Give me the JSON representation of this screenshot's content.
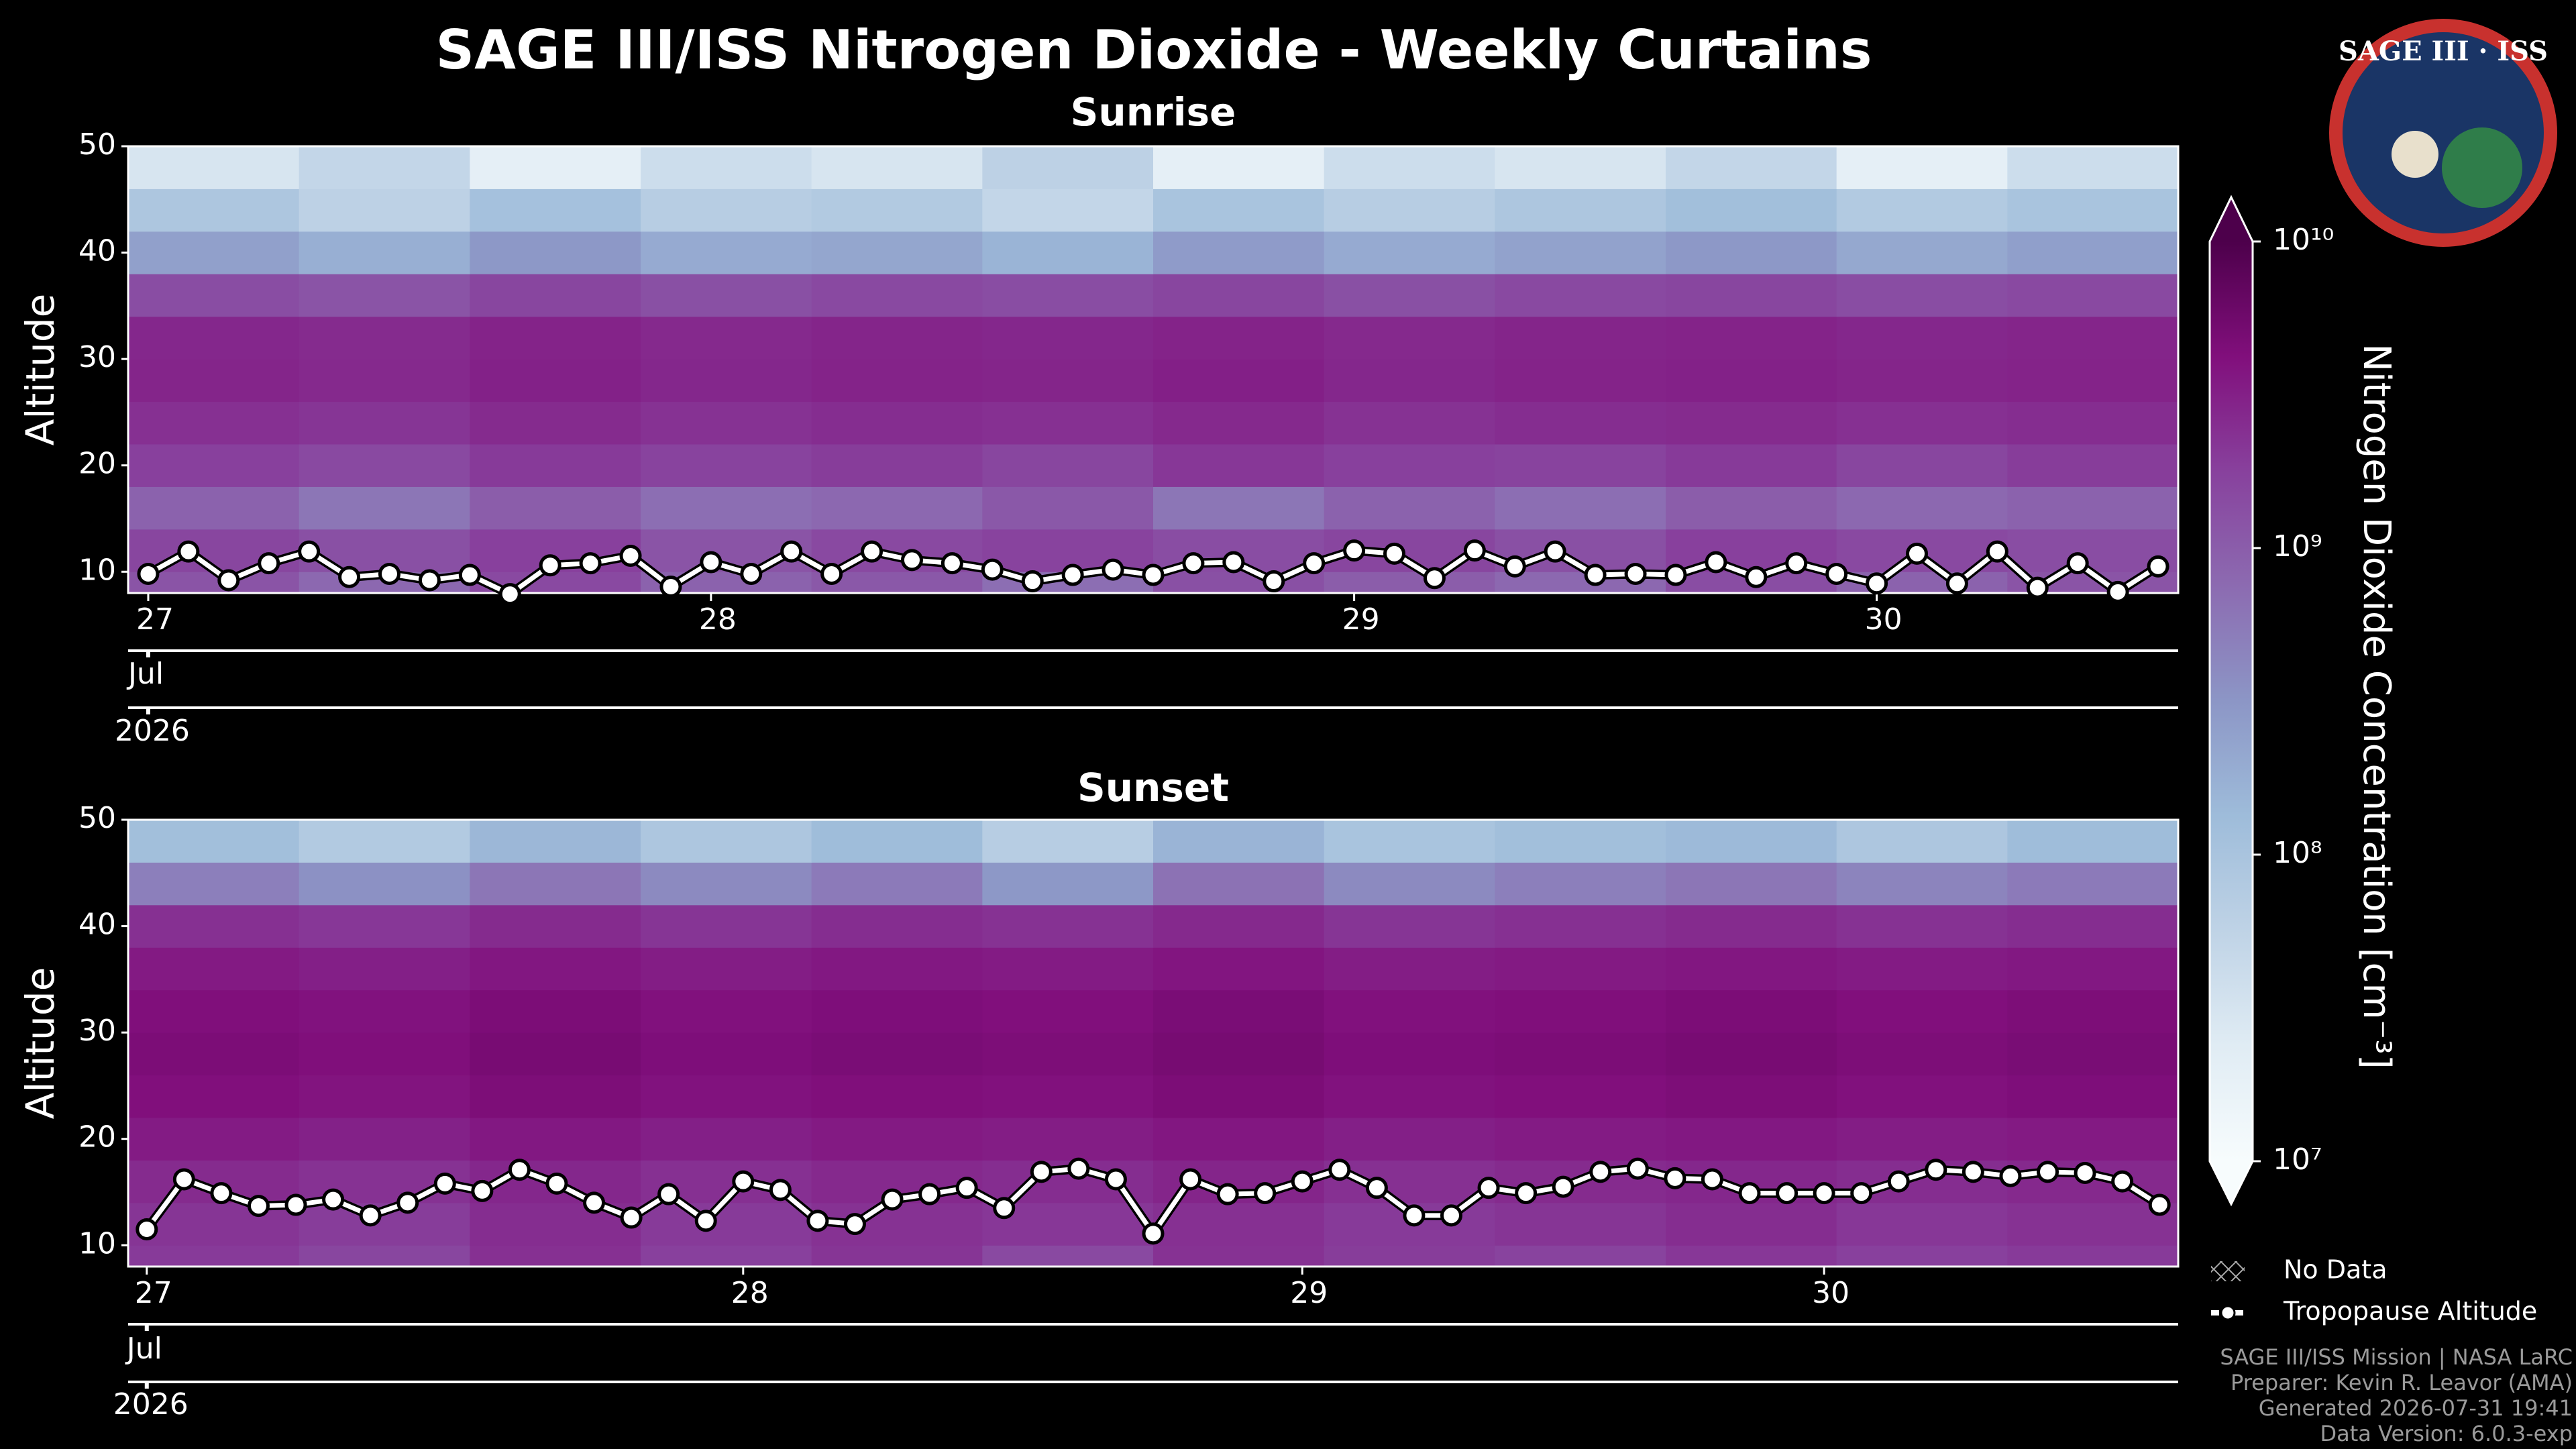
{
  "title": "SAGE III/ISS Nitrogen Dioxide - Weekly Curtains",
  "logo": {
    "title": "SAGE III · ISS"
  },
  "chart_data": [
    {
      "type": "heatmap",
      "title": "Sunrise",
      "ylabel": "Altitude",
      "ylim": [
        8,
        50
      ],
      "yticks": [
        10,
        20,
        30,
        40,
        50
      ],
      "categories": [
        "27",
        null,
        null,
        null,
        null,
        null,
        null,
        null,
        null,
        null,
        null,
        null,
        null,
        null,
        "28",
        null,
        null,
        null,
        null,
        null,
        null,
        null,
        null,
        null,
        null,
        null,
        null,
        null,
        null,
        null,
        "29",
        null,
        null,
        null,
        null,
        null,
        null,
        null,
        null,
        null,
        null,
        null,
        null,
        "30",
        null,
        null,
        null,
        null,
        null,
        null,
        null
      ],
      "month_label": "Jul",
      "year_label": "2026",
      "altitude_edges": [
        8,
        10,
        14,
        18,
        22,
        26,
        30,
        34,
        38,
        42,
        46,
        50
      ],
      "z": [
        [
          1200000000.0,
          800000000.0,
          1500000000.0,
          900000000.0,
          1100000000.0,
          700000000.0,
          1300000000.0,
          1000000000.0,
          800000000.0,
          1400000000.0,
          900000000.0,
          1200000000.0
        ],
        [
          1600000000.0,
          1300000000.0,
          1800000000.0,
          1200000000.0,
          1500000000.0,
          1700000000.0,
          1400000000.0,
          1600000000.0,
          1300000000.0,
          1800000000.0,
          1500000000.0,
          1400000000.0
        ],
        [
          900000000.0,
          600000000.0,
          1000000000.0,
          700000000.0,
          800000000.0,
          1100000000.0,
          600000000.0,
          900000000.0,
          700000000.0,
          1000000000.0,
          800000000.0,
          900000000.0
        ],
        [
          1800000000.0,
          1500000000.0,
          2000000000.0,
          1700000000.0,
          1900000000.0,
          1600000000.0,
          2100000000.0,
          1800000000.0,
          1700000000.0,
          2000000000.0,
          1600000000.0,
          1900000000.0
        ],
        [
          2400000000.0,
          2200000000.0,
          2600000000.0,
          2300000000.0,
          2500000000.0,
          2400000000.0,
          2700000000.0,
          2300000000.0,
          2500000000.0,
          2600000000.0,
          2400000000.0,
          2500000000.0
        ],
        [
          2900000000.0,
          2700000000.0,
          3100000000.0,
          2800000000.0,
          3000000000.0,
          2900000000.0,
          3200000000.0,
          2800000000.0,
          3000000000.0,
          3100000000.0,
          2900000000.0,
          3000000000.0
        ],
        [
          2800000000.0,
          2600000000.0,
          3000000000.0,
          2700000000.0,
          2900000000.0,
          2800000000.0,
          3000000000.0,
          2700000000.0,
          2900000000.0,
          3000000000.0,
          2800000000.0,
          2900000000.0
        ],
        [
          1400000000.0,
          1200000000.0,
          1600000000.0,
          1300000000.0,
          1500000000.0,
          1400000000.0,
          1600000000.0,
          1300000000.0,
          1500000000.0,
          1600000000.0,
          1400000000.0,
          1500000000.0
        ],
        [
          250000000.0,
          180000000.0,
          300000000.0,
          200000000.0,
          220000000.0,
          160000000.0,
          280000000.0,
          200000000.0,
          240000000.0,
          300000000.0,
          210000000.0,
          260000000.0
        ],
        [
          90000000.0,
          60000000.0,
          110000000.0,
          70000000.0,
          80000000.0,
          50000000.0,
          100000000.0,
          70000000.0,
          90000000.0,
          120000000.0,
          80000000.0,
          100000000.0
        ],
        [
          30000000.0,
          50000000.0,
          20000000.0,
          40000000.0,
          30000000.0,
          60000000.0,
          20000000.0,
          40000000.0,
          30000000.0,
          50000000.0,
          20000000.0,
          40000000.0
        ]
      ],
      "no_data_label": "No Data",
      "series": [
        {
          "name": "Tropopause Altitude",
          "color": "#ffffff",
          "values": [
            9.8,
            11.9,
            9.2,
            10.8,
            11.9,
            9.5,
            9.8,
            9.2,
            9.7,
            7.9,
            10.6,
            10.8,
            11.5,
            8.6,
            10.9,
            9.8,
            11.9,
            9.8,
            11.9,
            11.1,
            10.8,
            10.2,
            9.1,
            9.7,
            10.2,
            9.7,
            10.8,
            10.9,
            9.1,
            10.8,
            12.0,
            11.7,
            9.4,
            12.0,
            10.5,
            11.9,
            9.7,
            9.8,
            9.7,
            10.9,
            9.5,
            10.8,
            9.8,
            8.9,
            11.7,
            8.9,
            11.9,
            8.5,
            10.8,
            8.1,
            10.5
          ]
        }
      ]
    },
    {
      "type": "heatmap",
      "title": "Sunset",
      "ylabel": "Altitude",
      "ylim": [
        8,
        50
      ],
      "yticks": [
        10,
        20,
        30,
        40,
        50
      ],
      "categories": [
        "27",
        null,
        null,
        null,
        null,
        null,
        null,
        null,
        null,
        null,
        null,
        null,
        null,
        null,
        null,
        null,
        "28",
        null,
        null,
        null,
        null,
        null,
        null,
        null,
        null,
        null,
        null,
        null,
        null,
        null,
        null,
        "29",
        null,
        null,
        null,
        null,
        null,
        null,
        null,
        null,
        null,
        null,
        null,
        null,
        null,
        "30",
        null,
        null,
        null,
        null,
        null,
        null,
        null,
        null,
        null
      ],
      "month_label": "Jul",
      "year_label": "2026",
      "altitude_edges": [
        8,
        10,
        14,
        18,
        22,
        26,
        30,
        34,
        38,
        42,
        46,
        50
      ],
      "z": [
        [
          2000000000.0,
          1600000000.0,
          2400000000.0,
          1800000000.0,
          2200000000.0,
          1500000000.0,
          2300000000.0,
          1900000000.0,
          1700000000.0,
          2100000000.0,
          1800000000.0,
          2000000000.0
        ],
        [
          2200000000.0,
          1900000000.0,
          2500000000.0,
          2000000000.0,
          2300000000.0,
          2100000000.0,
          2400000000.0,
          2000000000.0,
          2200000000.0,
          2500000000.0,
          2100000000.0,
          2300000000.0
        ],
        [
          2600000000.0,
          2300000000.0,
          2800000000.0,
          2400000000.0,
          2700000000.0,
          2500000000.0,
          2900000000.0,
          2400000000.0,
          2600000000.0,
          2800000000.0,
          2500000000.0,
          2700000000.0
        ],
        [
          3400000000.0,
          3100000000.0,
          3600000000.0,
          3200000000.0,
          3500000000.0,
          3300000000.0,
          3700000000.0,
          3200000000.0,
          3400000000.0,
          3600000000.0,
          3300000000.0,
          3500000000.0
        ],
        [
          4200000000.0,
          3900000000.0,
          4500000000.0,
          4000000000.0,
          4300000000.0,
          4100000000.0,
          4600000000.0,
          4000000000.0,
          4200000000.0,
          4500000000.0,
          4100000000.0,
          4400000000.0
        ],
        [
          4600000000.0,
          4300000000.0,
          4900000000.0,
          4400000000.0,
          4700000000.0,
          4500000000.0,
          5000000000.0,
          4400000000.0,
          4600000000.0,
          4900000000.0,
          4500000000.0,
          4800000000.0
        ],
        [
          4300000000.0,
          4000000000.0,
          4600000000.0,
          4100000000.0,
          4400000000.0,
          4200000000.0,
          4700000000.0,
          4100000000.0,
          4300000000.0,
          4600000000.0,
          4200000000.0,
          4500000000.0
        ],
        [
          3500000000.0,
          3200000000.0,
          3700000000.0,
          3300000000.0,
          3600000000.0,
          3400000000.0,
          3800000000.0,
          3300000000.0,
          3500000000.0,
          3700000000.0,
          3400000000.0,
          3600000000.0
        ],
        [
          2400000000.0,
          2100000000.0,
          2600000000.0,
          2200000000.0,
          2500000000.0,
          2300000000.0,
          2700000000.0,
          2200000000.0,
          2400000000.0,
          2600000000.0,
          2300000000.0,
          2500000000.0
        ],
        [
          500000000.0,
          350000000.0,
          600000000.0,
          400000000.0,
          550000000.0,
          300000000.0,
          650000000.0,
          400000000.0,
          500000000.0,
          600000000.0,
          450000000.0,
          550000000.0
        ],
        [
          120000000.0,
          80000000.0,
          150000000.0,
          90000000.0,
          130000000.0,
          70000000.0,
          160000000.0,
          100000000.0,
          120000000.0,
          140000000.0,
          90000000.0,
          130000000.0
        ]
      ],
      "no_data_label": "No Data",
      "series": [
        {
          "name": "Tropopause Altitude",
          "color": "#ffffff",
          "values": [
            11.5,
            16.2,
            14.9,
            13.7,
            13.8,
            14.3,
            12.8,
            14.0,
            15.8,
            15.1,
            17.1,
            15.8,
            14.0,
            12.6,
            14.8,
            12.3,
            16.0,
            15.2,
            12.3,
            12.0,
            14.3,
            14.8,
            15.4,
            13.5,
            16.9,
            17.2,
            16.2,
            11.1,
            16.2,
            14.8,
            14.9,
            16.0,
            17.1,
            15.4,
            12.8,
            12.8,
            15.4,
            14.9,
            15.5,
            16.9,
            17.2,
            16.3,
            16.2,
            14.9,
            14.9,
            14.9,
            14.9,
            16.0,
            17.1,
            16.9,
            16.5,
            16.9,
            16.8,
            16.0,
            13.8
          ]
        }
      ]
    }
  ],
  "colorbar": {
    "label": "Nitrogen Dioxide Concentration [cm⁻³]",
    "log": true,
    "zlim": [
      10000000,
      10000000000
    ],
    "ticks": [
      {
        "value": 10000000,
        "label": "10⁷"
      },
      {
        "value": 100000000,
        "label": "10⁸"
      },
      {
        "value": 1000000000,
        "label": "10⁹"
      },
      {
        "value": 10000000000,
        "label": "10¹⁰"
      }
    ],
    "colors": [
      "#f7fcfd",
      "#e0ecf4",
      "#bfd3e6",
      "#9ebcda",
      "#8c96c6",
      "#8c6bb1",
      "#88419d",
      "#810f7c",
      "#4d004b"
    ]
  },
  "footer": [
    "SAGE III/ISS Mission | NASA LaRC",
    "Preparer: Kevin R. Leavor (AMA)",
    "Generated 2026-07-31 19:41",
    "Data Version: 6.0.3-exp"
  ]
}
